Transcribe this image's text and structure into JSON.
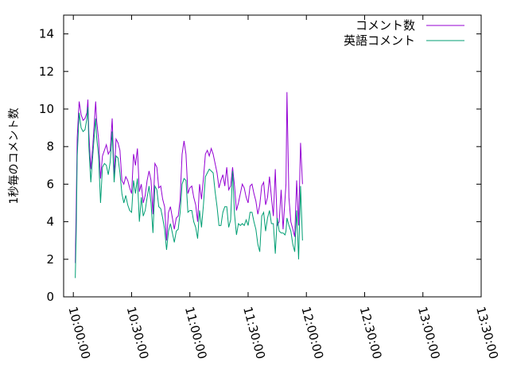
{
  "chart_data": {
    "type": "line",
    "title": "",
    "ylabel": "1秒毎のコメント数",
    "xlabel": "",
    "ylim": [
      0,
      15
    ],
    "yticks": [
      "0",
      "2",
      "4",
      "6",
      "8",
      "10",
      "12",
      "14"
    ],
    "xlim": [
      "09:55:00",
      "13:30:00"
    ],
    "xticks": [
      "10:00:00",
      "10:30:00",
      "11:00:00",
      "11:30:00",
      "12:00:00",
      "12:30:00",
      "13:00:00",
      "13:30:00"
    ],
    "legend_position": "top-right",
    "colors": {
      "series1": "#9400d3",
      "series2": "#009e73"
    },
    "series": [
      {
        "name": "コメント数",
        "color": "#9400d3",
        "points": [
          [
            "10:01:00",
            1.8
          ],
          [
            "10:01:30",
            5.0
          ],
          [
            "10:02:00",
            8.5
          ],
          [
            "10:03:00",
            10.4
          ],
          [
            "10:04:00",
            9.7
          ],
          [
            "10:05:00",
            9.4
          ],
          [
            "10:06:00",
            9.5
          ],
          [
            "10:07:00",
            9.8
          ],
          [
            "10:07:30",
            10.5
          ],
          [
            "10:08:00",
            8.7
          ],
          [
            "10:09:00",
            6.8
          ],
          [
            "10:10:00",
            8.0
          ],
          [
            "10:11:00",
            9.6
          ],
          [
            "10:11:30",
            10.4
          ],
          [
            "10:12:00",
            9.4
          ],
          [
            "10:13:00",
            8.4
          ],
          [
            "10:14:00",
            6.3
          ],
          [
            "10:15:00",
            7.5
          ],
          [
            "10:16:00",
            7.8
          ],
          [
            "10:17:00",
            8.1
          ],
          [
            "10:18:00",
            7.6
          ],
          [
            "10:19:00",
            7.8
          ],
          [
            "10:20:00",
            9.5
          ],
          [
            "10:21:00",
            6.5
          ],
          [
            "10:22:00",
            8.4
          ],
          [
            "10:23:00",
            8.2
          ],
          [
            "10:24:00",
            7.8
          ],
          [
            "10:25:00",
            6.2
          ],
          [
            "10:26:00",
            6.0
          ],
          [
            "10:27:00",
            6.4
          ],
          [
            "10:28:00",
            6.2
          ],
          [
            "10:29:00",
            5.8
          ],
          [
            "10:30:00",
            5.5
          ],
          [
            "10:31:00",
            7.6
          ],
          [
            "10:32:00",
            7.0
          ],
          [
            "10:33:00",
            7.9
          ],
          [
            "10:34:00",
            5.6
          ],
          [
            "10:35:00",
            6.0
          ],
          [
            "10:36:00",
            5.0
          ],
          [
            "10:37:00",
            5.4
          ],
          [
            "10:38:00",
            6.2
          ],
          [
            "10:39:00",
            6.7
          ],
          [
            "10:40:00",
            6.2
          ],
          [
            "10:41:00",
            4.4
          ],
          [
            "10:42:00",
            7.1
          ],
          [
            "10:43:00",
            6.9
          ],
          [
            "10:44:00",
            5.8
          ],
          [
            "10:45:00",
            5.9
          ],
          [
            "10:46:00",
            5.2
          ],
          [
            "10:47:00",
            4.8
          ],
          [
            "10:48:00",
            3.0
          ],
          [
            "10:49:00",
            4.5
          ],
          [
            "10:50:00",
            4.8
          ],
          [
            "10:51:00",
            4.2
          ],
          [
            "10:52:00",
            3.6
          ],
          [
            "10:53:00",
            4.2
          ],
          [
            "10:54:00",
            4.3
          ],
          [
            "10:55:00",
            5.2
          ],
          [
            "10:56:00",
            7.6
          ],
          [
            "10:57:00",
            8.3
          ],
          [
            "10:58:00",
            7.6
          ],
          [
            "10:59:00",
            5.5
          ],
          [
            "11:00:00",
            5.8
          ],
          [
            "11:01:00",
            5.9
          ],
          [
            "11:02:00",
            5.3
          ],
          [
            "11:03:00",
            4.9
          ],
          [
            "11:04:00",
            4.0
          ],
          [
            "11:05:00",
            6.0
          ],
          [
            "11:06:00",
            5.2
          ],
          [
            "11:07:00",
            6.3
          ],
          [
            "11:08:00",
            7.6
          ],
          [
            "11:09:00",
            7.8
          ],
          [
            "11:10:00",
            7.5
          ],
          [
            "11:11:00",
            7.9
          ],
          [
            "11:12:00",
            7.6
          ],
          [
            "11:13:00",
            7.1
          ],
          [
            "11:14:00",
            6.6
          ],
          [
            "11:15:00",
            5.8
          ],
          [
            "11:16:00",
            6.2
          ],
          [
            "11:17:00",
            6.5
          ],
          [
            "11:18:00",
            5.9
          ],
          [
            "11:19:00",
            6.9
          ],
          [
            "11:20:00",
            5.7
          ],
          [
            "11:21:00",
            5.9
          ],
          [
            "11:22:00",
            6.9
          ],
          [
            "11:23:00",
            5.9
          ],
          [
            "11:24:00",
            4.6
          ],
          [
            "11:25:00",
            5.0
          ],
          [
            "11:26:00",
            5.5
          ],
          [
            "11:27:00",
            6.0
          ],
          [
            "11:28:00",
            5.8
          ],
          [
            "11:29:00",
            5.3
          ],
          [
            "11:30:00",
            5.0
          ],
          [
            "11:31:00",
            5.9
          ],
          [
            "11:32:00",
            6.0
          ],
          [
            "11:33:00",
            5.5
          ],
          [
            "11:34:00",
            5.1
          ],
          [
            "11:35:00",
            4.4
          ],
          [
            "11:36:00",
            4.9
          ],
          [
            "11:37:00",
            5.9
          ],
          [
            "11:38:00",
            6.1
          ],
          [
            "11:39:00",
            4.9
          ],
          [
            "11:40:00",
            5.3
          ],
          [
            "11:41:00",
            6.4
          ],
          [
            "11:42:00",
            5.3
          ],
          [
            "11:43:00",
            4.3
          ],
          [
            "11:44:00",
            6.8
          ],
          [
            "11:45:00",
            3.8
          ],
          [
            "11:46:00",
            4.0
          ],
          [
            "11:47:00",
            5.7
          ],
          [
            "11:48:00",
            3.6
          ],
          [
            "11:49:00",
            5.2
          ],
          [
            "11:49:30",
            6.0
          ],
          [
            "11:50:00",
            10.9
          ],
          [
            "11:51:00",
            5.3
          ],
          [
            "11:52:00",
            4.0
          ],
          [
            "11:53:00",
            3.6
          ],
          [
            "11:54:00",
            3.2
          ],
          [
            "11:55:00",
            6.2
          ],
          [
            "11:56:00",
            3.8
          ],
          [
            "11:57:00",
            8.2
          ],
          [
            "11:58:00",
            6.0
          ]
        ]
      },
      {
        "name": "英語コメント",
        "color": "#009e73",
        "points": [
          [
            "10:01:00",
            1.0
          ],
          [
            "10:01:30",
            3.5
          ],
          [
            "10:02:00",
            7.5
          ],
          [
            "10:03:00",
            9.8
          ],
          [
            "10:04:00",
            9.0
          ],
          [
            "10:05:00",
            8.8
          ],
          [
            "10:06:00",
            8.9
          ],
          [
            "10:07:00",
            9.5
          ],
          [
            "10:07:30",
            10.1
          ],
          [
            "10:08:00",
            8.0
          ],
          [
            "10:09:00",
            6.1
          ],
          [
            "10:10:00",
            7.5
          ],
          [
            "10:11:00",
            8.9
          ],
          [
            "10:11:30",
            9.5
          ],
          [
            "10:12:00",
            8.5
          ],
          [
            "10:13:00",
            7.5
          ],
          [
            "10:14:00",
            5.0
          ],
          [
            "10:15:00",
            6.9
          ],
          [
            "10:16:00",
            7.1
          ],
          [
            "10:17:00",
            7.0
          ],
          [
            "10:18:00",
            6.5
          ],
          [
            "10:19:00",
            7.2
          ],
          [
            "10:20:00",
            8.8
          ],
          [
            "10:21:00",
            6.1
          ],
          [
            "10:22:00",
            7.5
          ],
          [
            "10:23:00",
            7.4
          ],
          [
            "10:24:00",
            6.6
          ],
          [
            "10:25:00",
            5.5
          ],
          [
            "10:26:00",
            5.0
          ],
          [
            "10:27:00",
            5.4
          ],
          [
            "10:28:00",
            4.9
          ],
          [
            "10:29:00",
            4.6
          ],
          [
            "10:30:00",
            4.5
          ],
          [
            "10:31:00",
            6.2
          ],
          [
            "10:32:00",
            5.5
          ],
          [
            "10:33:00",
            6.3
          ],
          [
            "10:34:00",
            4.0
          ],
          [
            "10:35:00",
            5.3
          ],
          [
            "10:36:00",
            4.3
          ],
          [
            "10:37:00",
            4.6
          ],
          [
            "10:38:00",
            5.3
          ],
          [
            "10:39:00",
            5.9
          ],
          [
            "10:40:00",
            5.0
          ],
          [
            "10:41:00",
            3.4
          ],
          [
            "10:42:00",
            5.9
          ],
          [
            "10:43:00",
            5.7
          ],
          [
            "10:44:00",
            4.8
          ],
          [
            "10:45:00",
            4.7
          ],
          [
            "10:46:00",
            4.2
          ],
          [
            "10:47:00",
            3.6
          ],
          [
            "10:48:00",
            2.5
          ],
          [
            "10:49:00",
            3.5
          ],
          [
            "10:50:00",
            3.9
          ],
          [
            "10:51:00",
            3.4
          ],
          [
            "10:52:00",
            2.9
          ],
          [
            "10:53:00",
            3.5
          ],
          [
            "10:54:00",
            3.6
          ],
          [
            "10:55:00",
            4.5
          ],
          [
            "10:56:00",
            6.0
          ],
          [
            "10:57:00",
            6.3
          ],
          [
            "10:58:00",
            6.2
          ],
          [
            "10:59:00",
            4.5
          ],
          [
            "11:00:00",
            4.6
          ],
          [
            "11:01:00",
            4.6
          ],
          [
            "11:02:00",
            4.0
          ],
          [
            "11:03:00",
            3.7
          ],
          [
            "11:04:00",
            3.1
          ],
          [
            "11:05:00",
            4.6
          ],
          [
            "11:06:00",
            3.7
          ],
          [
            "11:07:00",
            4.9
          ],
          [
            "11:08:00",
            6.4
          ],
          [
            "11:09:00",
            6.6
          ],
          [
            "11:10:00",
            6.8
          ],
          [
            "11:11:00",
            6.7
          ],
          [
            "11:12:00",
            6.6
          ],
          [
            "11:13:00",
            5.6
          ],
          [
            "11:14:00",
            4.8
          ],
          [
            "11:15:00",
            3.8
          ],
          [
            "11:16:00",
            3.8
          ],
          [
            "11:17:00",
            4.5
          ],
          [
            "11:18:00",
            4.8
          ],
          [
            "11:19:00",
            4.8
          ],
          [
            "11:20:00",
            3.7
          ],
          [
            "11:21:00",
            4.1
          ],
          [
            "11:22:00",
            6.7
          ],
          [
            "11:23:00",
            4.4
          ],
          [
            "11:24:00",
            3.3
          ],
          [
            "11:25:00",
            3.9
          ],
          [
            "11:26:00",
            3.8
          ],
          [
            "11:27:00",
            3.9
          ],
          [
            "11:28:00",
            3.8
          ],
          [
            "11:29:00",
            4.1
          ],
          [
            "11:30:00",
            3.8
          ],
          [
            "11:31:00",
            4.5
          ],
          [
            "11:32:00",
            4.5
          ],
          [
            "11:33:00",
            4.0
          ],
          [
            "11:34:00",
            3.6
          ],
          [
            "11:35:00",
            2.8
          ],
          [
            "11:36:00",
            2.4
          ],
          [
            "11:37:00",
            4.3
          ],
          [
            "11:38:00",
            4.5
          ],
          [
            "11:39:00",
            3.5
          ],
          [
            "11:40:00",
            4.2
          ],
          [
            "11:41:00",
            4.6
          ],
          [
            "11:42:00",
            3.9
          ],
          [
            "11:43:00",
            3.9
          ],
          [
            "11:44:00",
            2.3
          ],
          [
            "11:45:00",
            4.2
          ],
          [
            "11:46:00",
            3.5
          ],
          [
            "11:47:00",
            3.4
          ],
          [
            "11:48:00",
            3.4
          ],
          [
            "11:49:00",
            3.3
          ],
          [
            "11:49:30",
            3.5
          ],
          [
            "11:50:00",
            4.2
          ],
          [
            "11:51:00",
            3.8
          ],
          [
            "11:52:00",
            3.5
          ],
          [
            "11:53:00",
            2.8
          ],
          [
            "11:54:00",
            2.4
          ],
          [
            "11:55:00",
            4.6
          ],
          [
            "11:56:00",
            2.0
          ],
          [
            "11:57:00",
            5.9
          ],
          [
            "11:58:00",
            3.0
          ]
        ]
      }
    ]
  }
}
